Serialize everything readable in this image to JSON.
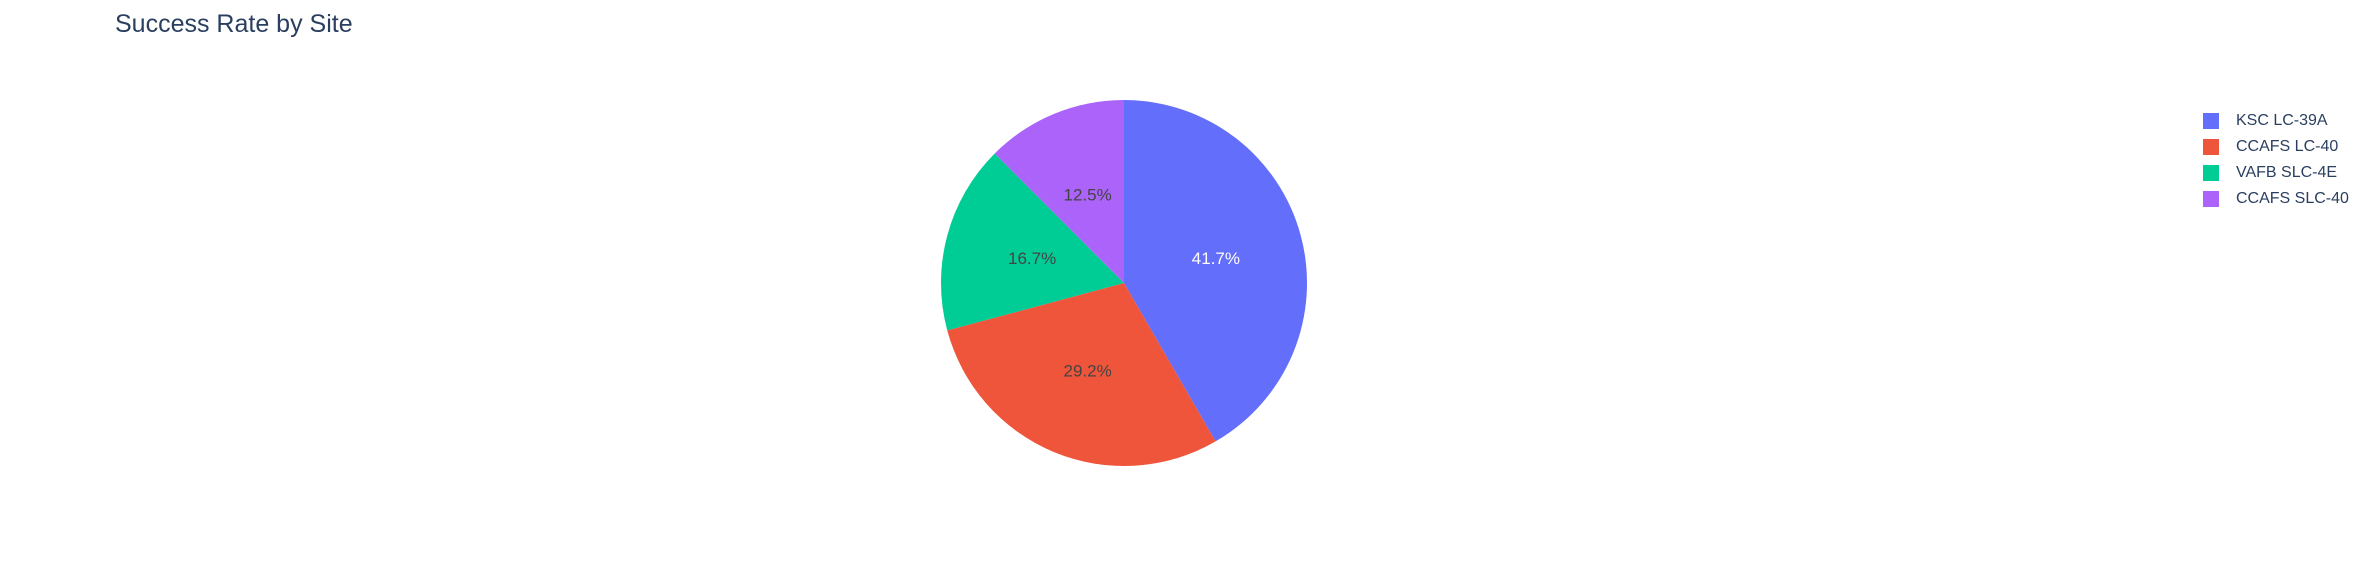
{
  "chart_data": {
    "type": "pie",
    "title": "Success Rate by Site",
    "categories": [
      "KSC LC-39A",
      "CCAFS LC-40",
      "VAFB SLC-4E",
      "CCAFS SLC-40"
    ],
    "values": [
      41.7,
      29.2,
      16.7,
      12.5
    ],
    "value_labels": [
      "41.7%",
      "29.2%",
      "16.7%",
      "12.5%"
    ],
    "colors": [
      "#636efa",
      "#EF553B",
      "#00cc96",
      "#ab63fa"
    ],
    "label_colors": [
      "#ffffff",
      "#444444",
      "#444444",
      "#444444"
    ],
    "direction": "clockwise",
    "start": "top",
    "legend": "top-right"
  }
}
